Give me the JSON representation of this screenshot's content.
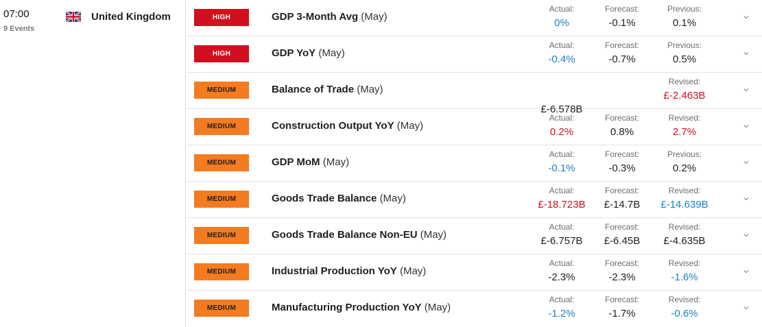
{
  "header": {
    "time": "07:00",
    "events_count": "9 Events",
    "country": "United Kingdom"
  },
  "rows": [
    {
      "importance": "HIGH",
      "event": "GDP 3-Month Avg",
      "period": "(May)",
      "actual": {
        "label": "Actual:",
        "value": "0%",
        "color": "blue"
      },
      "forecast": {
        "label": "Forecast:",
        "value": "-0.1%",
        "color": "black"
      },
      "previous": {
        "label": "Previous:",
        "value": "0.1%",
        "color": "black"
      }
    },
    {
      "importance": "HIGH",
      "event": "GDP YoY",
      "period": "(May)",
      "actual": {
        "label": "Actual:",
        "value": "-0.4%",
        "color": "blue"
      },
      "forecast": {
        "label": "Forecast:",
        "value": "-0.7%",
        "color": "black"
      },
      "previous": {
        "label": "Previous:",
        "value": "0.5%",
        "color": "black"
      }
    },
    {
      "importance": "MEDIUM",
      "event": "Balance of Trade",
      "period": "(May)",
      "actual": {
        "label": "",
        "value": "£-6.578B",
        "color": "black"
      },
      "forecast": {
        "label": "",
        "value": "",
        "color": "black"
      },
      "previous": {
        "label": "Revised:",
        "value": "£-2.463B",
        "color": "red"
      }
    },
    {
      "importance": "MEDIUM",
      "event": "Construction Output YoY",
      "period": "(May)",
      "actual": {
        "label": "Actual:",
        "value": "0.2%",
        "color": "red"
      },
      "forecast": {
        "label": "Forecast:",
        "value": "0.8%",
        "color": "black"
      },
      "previous": {
        "label": "Revised:",
        "value": "2.7%",
        "color": "red"
      }
    },
    {
      "importance": "MEDIUM",
      "event": "GDP MoM",
      "period": "(May)",
      "actual": {
        "label": "Actual:",
        "value": "-0.1%",
        "color": "blue"
      },
      "forecast": {
        "label": "Forecast:",
        "value": "-0.3%",
        "color": "black"
      },
      "previous": {
        "label": "Previous:",
        "value": "0.2%",
        "color": "black"
      }
    },
    {
      "importance": "MEDIUM",
      "event": "Goods Trade Balance",
      "period": "(May)",
      "actual": {
        "label": "Actual:",
        "value": "£-18.723B",
        "color": "red"
      },
      "forecast": {
        "label": "Forecast:",
        "value": "£-14.7B",
        "color": "black"
      },
      "previous": {
        "label": "Revised:",
        "value": "£-14.639B",
        "color": "blue"
      }
    },
    {
      "importance": "MEDIUM",
      "event": "Goods Trade Balance Non-EU",
      "period": "(May)",
      "actual": {
        "label": "Actual:",
        "value": "£-6.757B",
        "color": "black"
      },
      "forecast": {
        "label": "Forecast:",
        "value": "£-6.45B",
        "color": "black"
      },
      "previous": {
        "label": "Revised:",
        "value": "£-4.635B",
        "color": "black"
      }
    },
    {
      "importance": "MEDIUM",
      "event": "Industrial Production YoY",
      "period": "(May)",
      "actual": {
        "label": "Actual:",
        "value": "-2.3%",
        "color": "black"
      },
      "forecast": {
        "label": "Forecast:",
        "value": "-2.3%",
        "color": "black"
      },
      "previous": {
        "label": "Revised:",
        "value": "-1.6%",
        "color": "blue"
      }
    },
    {
      "importance": "MEDIUM",
      "event": "Manufacturing Production YoY",
      "period": "(May)",
      "actual": {
        "label": "Actual:",
        "value": "-1.2%",
        "color": "blue"
      },
      "forecast": {
        "label": "Forecast:",
        "value": "-1.7%",
        "color": "black"
      },
      "previous": {
        "label": "Revised:",
        "value": "-0.6%",
        "color": "blue"
      }
    }
  ],
  "colors": {
    "high": "#d10f1f",
    "medium": "#f47b20",
    "blue": "#1a82c4",
    "red": "#d10f1f"
  },
  "icons": {
    "flag": "uk-flag-icon",
    "expand": "chevron-down-icon"
  }
}
